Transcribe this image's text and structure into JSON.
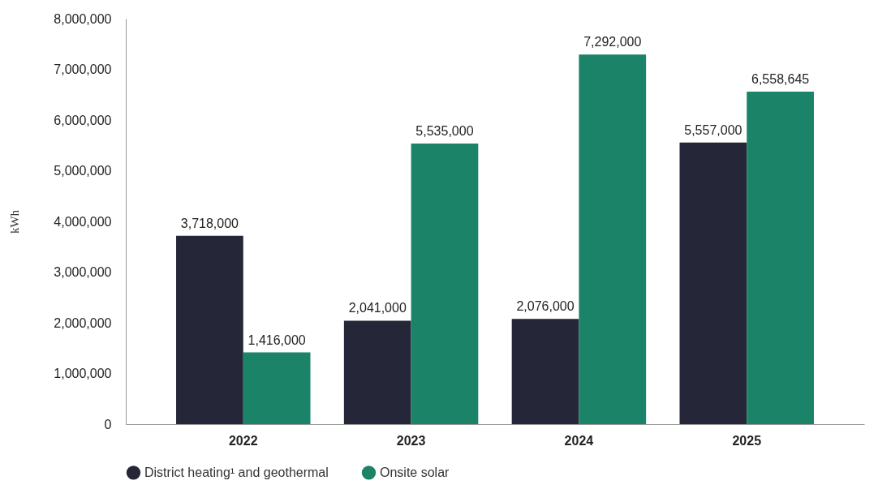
{
  "chart_data": {
    "type": "bar",
    "ylabel": "kWh",
    "categories": [
      "2022",
      "2023",
      "2024",
      "2025"
    ],
    "series": [
      {
        "name": "District heating¹ and geothermal",
        "color": "#252637",
        "values": [
          3718000,
          2041000,
          2076000,
          5557000
        ],
        "value_labels": [
          "3,718,000",
          "2,041,000",
          "2,076,000",
          "5,557,000"
        ]
      },
      {
        "name": "Onsite solar",
        "color": "#1b8368",
        "values": [
          1416000,
          5535000,
          7292000,
          6558645
        ],
        "value_labels": [
          "1,416,000",
          "5,535,000",
          "7,292,000",
          "6,558,645"
        ]
      }
    ],
    "ylim": [
      0,
      8000000
    ],
    "yticks": [
      0,
      {
        "value": 1000000,
        "label": "1,000,000"
      },
      {
        "value": 2000000,
        "label": "2,000,000"
      },
      {
        "value": 3000000,
        "label": "3,000,000"
      },
      {
        "value": 4000000,
        "label": "4,000,000"
      },
      {
        "value": 5000000,
        "label": "5,000,000"
      },
      {
        "value": 6000000,
        "label": "6,000,000"
      },
      {
        "value": 7000000,
        "label": "7,000,000"
      },
      {
        "value": 8000000,
        "label": "8,000,000"
      }
    ],
    "grid": false,
    "legend": "bottom"
  }
}
